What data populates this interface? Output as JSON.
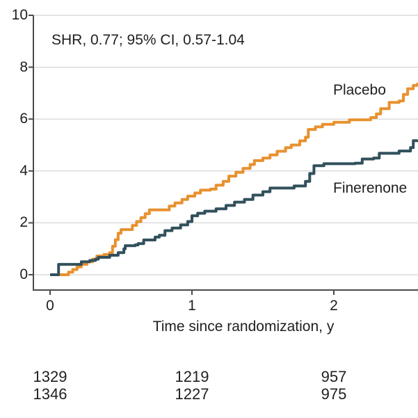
{
  "figure": {
    "annotation": "SHR, 0.77; 95% CI, 0.57-1.04",
    "curve_labels": {
      "placebo": "Placebo",
      "finerenone": "Finerenone"
    }
  },
  "chart_data": {
    "type": "line",
    "subtype": "step-cumulative-incidence",
    "title": "",
    "xlabel": "Time since randomization, y",
    "ylabel": "",
    "xlim": [
      0,
      2.6
    ],
    "ylim": [
      0,
      10
    ],
    "xticks": [
      "0",
      "1",
      "2"
    ],
    "ytick_values": [
      0,
      2,
      4,
      6,
      8,
      10
    ],
    "grid": "horizontal gridlines at every y tick",
    "legend_position": "labels beside curves",
    "annotation": "SHR, 0.77; 95% CI, 0.57-1.04",
    "colors": {
      "placebo": "#E8912F",
      "finerenone": "#31505C",
      "gridline": "#DCDCDC",
      "axis": "#4A4A4A"
    },
    "series": [
      {
        "name": "Placebo",
        "color": "#E8912F",
        "points": [
          [
            0,
            0
          ],
          [
            0.12,
            0
          ],
          [
            0.13,
            0.1
          ],
          [
            0.16,
            0.2
          ],
          [
            0.19,
            0.3
          ],
          [
            0.22,
            0.4
          ],
          [
            0.26,
            0.5
          ],
          [
            0.3,
            0.6
          ],
          [
            0.33,
            0.72
          ],
          [
            0.38,
            0.78
          ],
          [
            0.42,
            0.85
          ],
          [
            0.44,
            1.1
          ],
          [
            0.46,
            1.35
          ],
          [
            0.48,
            1.6
          ],
          [
            0.5,
            1.74
          ],
          [
            0.57,
            1.74
          ],
          [
            0.58,
            1.9
          ],
          [
            0.61,
            2.05
          ],
          [
            0.64,
            2.2
          ],
          [
            0.67,
            2.35
          ],
          [
            0.7,
            2.5
          ],
          [
            0.82,
            2.5
          ],
          [
            0.84,
            2.65
          ],
          [
            0.88,
            2.77
          ],
          [
            0.93,
            2.9
          ],
          [
            0.97,
            3.03
          ],
          [
            1.02,
            3.15
          ],
          [
            1.06,
            3.26
          ],
          [
            1.13,
            3.3
          ],
          [
            1.17,
            3.45
          ],
          [
            1.22,
            3.6
          ],
          [
            1.26,
            3.8
          ],
          [
            1.31,
            3.95
          ],
          [
            1.36,
            4.1
          ],
          [
            1.41,
            4.25
          ],
          [
            1.44,
            4.4
          ],
          [
            1.5,
            4.5
          ],
          [
            1.55,
            4.62
          ],
          [
            1.6,
            4.76
          ],
          [
            1.66,
            4.9
          ],
          [
            1.7,
            5.0
          ],
          [
            1.76,
            5.16
          ],
          [
            1.8,
            5.3
          ],
          [
            1.82,
            5.6
          ],
          [
            1.87,
            5.7
          ],
          [
            1.92,
            5.8
          ],
          [
            2.0,
            5.88
          ],
          [
            2.11,
            5.97
          ],
          [
            2.26,
            6.06
          ],
          [
            2.3,
            6.2
          ],
          [
            2.33,
            6.4
          ],
          [
            2.39,
            6.64
          ],
          [
            2.46,
            6.7
          ],
          [
            2.49,
            6.95
          ],
          [
            2.52,
            7.17
          ],
          [
            2.56,
            7.3
          ],
          [
            2.59,
            7.4
          ]
        ]
      },
      {
        "name": "Finerenone",
        "color": "#31505C",
        "points": [
          [
            0,
            0
          ],
          [
            0.04,
            0
          ],
          [
            0.06,
            0.4
          ],
          [
            0.2,
            0.4
          ],
          [
            0.22,
            0.5
          ],
          [
            0.28,
            0.55
          ],
          [
            0.32,
            0.6
          ],
          [
            0.34,
            0.67
          ],
          [
            0.42,
            0.75
          ],
          [
            0.48,
            0.85
          ],
          [
            0.52,
            1.0
          ],
          [
            0.53,
            1.12
          ],
          [
            0.6,
            1.15
          ],
          [
            0.62,
            1.2
          ],
          [
            0.66,
            1.34
          ],
          [
            0.74,
            1.45
          ],
          [
            0.77,
            1.52
          ],
          [
            0.81,
            1.7
          ],
          [
            0.86,
            1.8
          ],
          [
            0.92,
            1.92
          ],
          [
            0.97,
            2.05
          ],
          [
            1.0,
            2.27
          ],
          [
            1.04,
            2.37
          ],
          [
            1.09,
            2.45
          ],
          [
            1.17,
            2.54
          ],
          [
            1.24,
            2.67
          ],
          [
            1.3,
            2.8
          ],
          [
            1.37,
            2.9
          ],
          [
            1.43,
            3.07
          ],
          [
            1.5,
            3.2
          ],
          [
            1.55,
            3.34
          ],
          [
            1.72,
            3.42
          ],
          [
            1.8,
            3.6
          ],
          [
            1.83,
            3.9
          ],
          [
            1.86,
            4.2
          ],
          [
            1.93,
            4.28
          ],
          [
            2.1,
            4.28
          ],
          [
            2.15,
            4.3
          ],
          [
            2.2,
            4.46
          ],
          [
            2.28,
            4.5
          ],
          [
            2.32,
            4.68
          ],
          [
            2.46,
            4.77
          ],
          [
            2.54,
            4.9
          ],
          [
            2.56,
            5.17
          ],
          [
            2.59,
            5.2
          ]
        ]
      }
    ],
    "at_risk": {
      "tick_columns": [
        "0",
        "1",
        "2"
      ],
      "rows": [
        [
          "1329",
          "1219",
          "957"
        ],
        [
          "1346",
          "1227",
          "975"
        ]
      ]
    }
  }
}
